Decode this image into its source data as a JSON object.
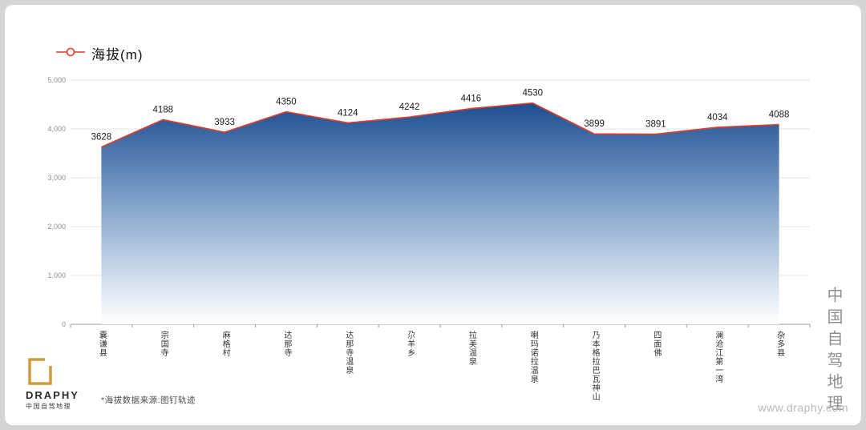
{
  "chart_data": {
    "type": "area",
    "legend": [
      "海拔(m)"
    ],
    "legend_position": "top-left",
    "categories": [
      "囊谦县",
      "宗国寺",
      "麻格村",
      "达那寺",
      "达那寺温泉",
      "尕羊乡",
      "拉美温泉",
      "喇玛诺拉温泉",
      "乃本格拉巴瓦神山",
      "四面佛",
      "澜沧江第一湾",
      "杂多县"
    ],
    "values": [
      3628,
      4188,
      3933,
      4350,
      4124,
      4242,
      4416,
      4530,
      3899,
      3891,
      4034,
      4088
    ],
    "ylabel": "海拔(m)",
    "xlabel": "",
    "ylim": [
      0,
      5000
    ],
    "y_ticks": [
      0,
      1000,
      2000,
      3000,
      4000,
      5000
    ],
    "y_tick_labels": [
      "0",
      "1,000",
      "2,000",
      "3,000",
      "4,000",
      "5,000"
    ],
    "grid": true,
    "line_color": "#e23c2e",
    "area_gradient_top": "#17488c",
    "area_gradient_mid": "#7d9fc9",
    "area_gradient_bottom": "#ffffff"
  },
  "footer": {
    "logo_text": "DRAPHY",
    "logo_subtext": "中国自驾地理",
    "source_note": "*海拔数据来源:图钉轨迹",
    "website": "www.draphy.com"
  },
  "branding": {
    "vertical_text": "中国自驾地理"
  }
}
